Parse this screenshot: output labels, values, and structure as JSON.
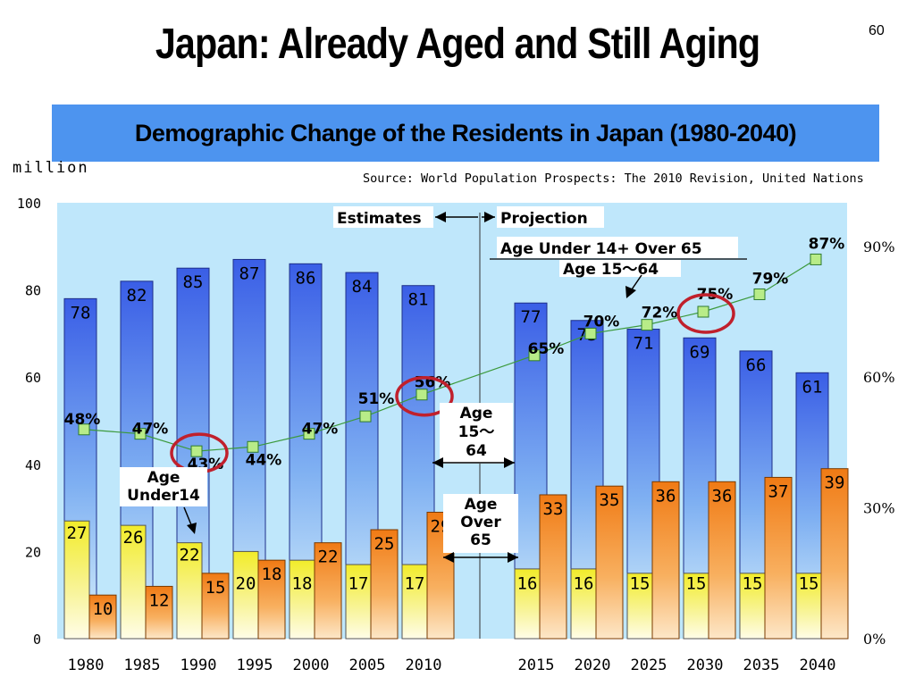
{
  "slide": {
    "title": "Japan: Already Aged and Still Aging",
    "page_number": "60",
    "subtitle": "Demographic Change of the Residents in Japan (1980-2040)",
    "unit": "million",
    "source": "Source: World Population Prospects: The 2010 Revision, United Nations"
  },
  "colors": {
    "plot_bg": "#bfe7fb",
    "age15_64": "#3d63e6",
    "over65": "#f08418",
    "under14": "#f4ef3a",
    "ratio_line": "#3c9a3c",
    "ratio_marker": "#b8ec88",
    "highlight_circle": "#c0202c"
  },
  "chart_data": {
    "type": "bar",
    "categories": [
      "1980",
      "1985",
      "1990",
      "1995",
      "2000",
      "2005",
      "2010",
      "2015",
      "2020",
      "2025",
      "2030",
      "2035",
      "2040"
    ],
    "series": [
      {
        "name": "Age 15～64",
        "values": [
          78,
          82,
          85,
          87,
          86,
          84,
          81,
          77,
          73,
          71,
          69,
          66,
          61
        ]
      },
      {
        "name": "Age Under14",
        "values": [
          27,
          26,
          22,
          20,
          18,
          17,
          17,
          16,
          16,
          15,
          15,
          15,
          15
        ]
      },
      {
        "name": "Age Over 65",
        "values": [
          10,
          12,
          15,
          18,
          22,
          25,
          29,
          33,
          35,
          36,
          36,
          37,
          39
        ]
      }
    ],
    "ratio_line": {
      "name": "Age Under 14+ Over 65 / Age 15～64",
      "values": [
        48,
        47,
        43,
        44,
        47,
        51,
        56,
        65,
        70,
        72,
        75,
        79,
        87
      ],
      "labels": [
        "48%",
        "47%",
        "43%",
        "44%",
        "47%",
        "51%",
        "56%",
        "65%",
        "70%",
        "72%",
        "75%",
        "79%",
        "87%"
      ],
      "highlighted": [
        "1990",
        "2010",
        "2030"
      ]
    },
    "y_left": {
      "ticks": [
        "0",
        "20",
        "40",
        "60",
        "80",
        "100"
      ],
      "ylim": [
        0,
        100
      ]
    },
    "y_right": {
      "ticks": [
        "0%",
        "30%",
        "60%",
        "90%"
      ],
      "ylim": [
        0,
        100
      ]
    },
    "annotations": {
      "estimates": "Estimates",
      "projection": "Projection",
      "ratio_numerator": "Age Under 14+ Over 65",
      "ratio_denominator": "Age 15～64",
      "age15_64_label": [
        "Age",
        "15～",
        "64"
      ],
      "over65_label": [
        "Age",
        "Over",
        "65"
      ],
      "under14_label": [
        "Age",
        "Under14"
      ]
    }
  }
}
